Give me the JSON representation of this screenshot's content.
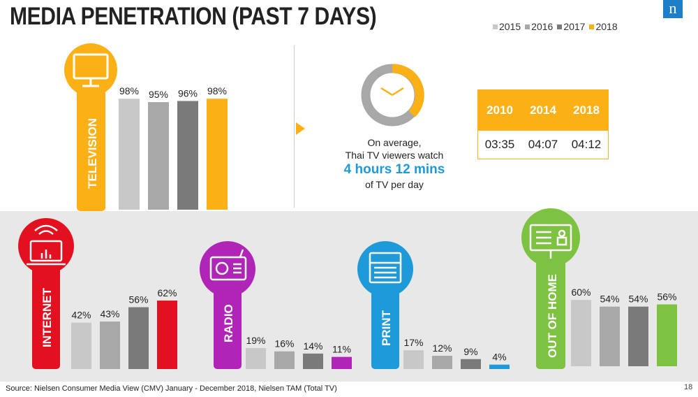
{
  "title": "MEDIA PENETRATION (PAST 7 DAYS)",
  "logo_text": "n",
  "legend": [
    {
      "label": "2015",
      "color": "#c8c8c8"
    },
    {
      "label": "2016",
      "color": "#a8a8a8"
    },
    {
      "label": "2017",
      "color": "#7a7a7a"
    },
    {
      "label": "2018",
      "color": "#fbb016"
    }
  ],
  "tv_info": {
    "line1": "On average,",
    "line2": "Thai TV viewers watch",
    "highlight": "4 hours 12 mins",
    "line3": "of TV per day"
  },
  "tv_table": {
    "years": [
      "2010",
      "2014",
      "2018"
    ],
    "values": [
      "03:35",
      "04:07",
      "04:12"
    ]
  },
  "source": "Source: Nielsen Consumer Media View (CMV) January - December 2018, Nielsen TAM (Total TV)",
  "page_number": "18",
  "chart_data": [
    {
      "type": "bar",
      "category_label": "TELEVISION",
      "icon": "tv-icon",
      "accent": "#fbb016",
      "series_names": [
        "2015",
        "2016",
        "2017",
        "2018"
      ],
      "values": [
        98,
        95,
        96,
        98
      ],
      "value_labels": [
        "98%",
        "95%",
        "96%",
        "98%"
      ]
    },
    {
      "type": "bar",
      "category_label": "INTERNET",
      "icon": "laptop-wifi-icon",
      "accent": "#e3101f",
      "series_names": [
        "2015",
        "2016",
        "2017",
        "2018"
      ],
      "values": [
        42,
        43,
        56,
        62
      ],
      "value_labels": [
        "42%",
        "43%",
        "56%",
        "62%"
      ]
    },
    {
      "type": "bar",
      "category_label": "RADIO",
      "icon": "radio-icon",
      "accent": "#b025b8",
      "series_names": [
        "2015",
        "2016",
        "2017",
        "2018"
      ],
      "values": [
        19,
        16,
        14,
        11
      ],
      "value_labels": [
        "19%",
        "16%",
        "14%",
        "11%"
      ]
    },
    {
      "type": "bar",
      "category_label": "PRINT",
      "icon": "newspaper-icon",
      "accent": "#1e9ad8",
      "series_names": [
        "2015",
        "2016",
        "2017",
        "2018"
      ],
      "values": [
        17,
        12,
        9,
        4
      ],
      "value_labels": [
        "17%",
        "12%",
        "9%",
        "4%"
      ]
    },
    {
      "type": "bar",
      "category_label": "OUT OF HOME",
      "icon": "billboard-icon",
      "accent": "#7ec242",
      "series_names": [
        "2015",
        "2016",
        "2017",
        "2018"
      ],
      "values": [
        60,
        54,
        54,
        56
      ],
      "value_labels": [
        "60%",
        "54%",
        "54%",
        "56%"
      ]
    }
  ]
}
